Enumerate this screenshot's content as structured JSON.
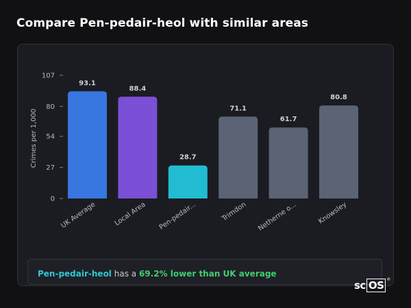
{
  "page": {
    "title": "Compare Pen-pedair-heol with similar areas"
  },
  "chart_data": {
    "type": "bar",
    "ylabel": "Crimes per 1,000",
    "ylim": [
      0,
      107
    ],
    "yticks": [
      0,
      27,
      54,
      80,
      107
    ],
    "grid": false,
    "categories": [
      "UK Average",
      "Local Area",
      "Pen-pedair...",
      "Trimdon",
      "Netherne o...",
      "Knowsley"
    ],
    "values": [
      93.1,
      88.4,
      28.7,
      71.1,
      61.7,
      80.8
    ],
    "value_labels": [
      "93.1",
      "88.4",
      "28.7",
      "71.1",
      "61.7",
      "80.8"
    ],
    "colors": [
      "#3876e0",
      "#7b4fd6",
      "#22bcd2",
      "#5a6475",
      "#5a6475",
      "#5a6475"
    ]
  },
  "summary": {
    "area": "Pen-pedair-heol",
    "middle": " has a ",
    "stat": "69.2% lower than UK average"
  },
  "logo": {
    "prefix": "sc",
    "boxed": "OS",
    "mark": "®"
  }
}
